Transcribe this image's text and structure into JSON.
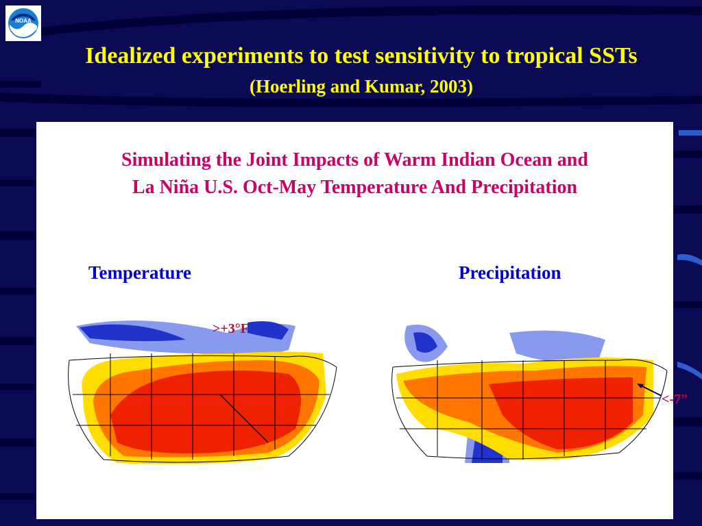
{
  "slide": {
    "title": "Idealized experiments to test sensitivity to tropical SSTs",
    "subtitle": "(Hoerling and Kumar, 2003)",
    "logo_text": "NOAA"
  },
  "panel": {
    "title_line1": "Simulating the Joint Impacts of Warm Indian Ocean and",
    "title_line2": "La Niña U.S. Oct-May Temperature And Precipitation",
    "temperature_label": "Temperature",
    "precipitation_label": "Precipitation",
    "temperature_annotation": ">+3°F",
    "precipitation_annotation": "<-7”"
  },
  "colors": {
    "background": "#0a0a55",
    "title_yellow": "#ffff00",
    "panel_title": "#cc0066",
    "label_blue": "#0000cc",
    "annotation_red": "#cc0033",
    "warm_dark": "#ee2200",
    "warm_mid": "#ff7700",
    "warm_light": "#ffdd00",
    "cool_dark": "#2233cc",
    "cool_light": "#8899ee"
  }
}
